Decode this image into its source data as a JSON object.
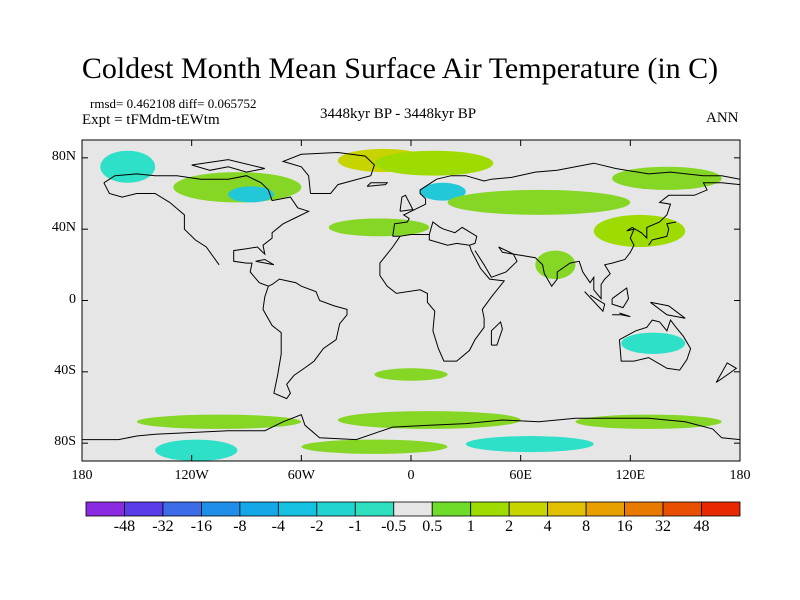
{
  "title": "Coldest Month Mean Surface Air Temperature (in C)",
  "stats": {
    "rmsd": "rmsd= 0.462108 diff= 0.065752",
    "expt": "Expt = tFMdm-tEWtm",
    "period": "3448kyr BP - 3448kyr BP",
    "season": "ANN"
  },
  "map": {
    "projection": "cylindrical equidistant",
    "ocean_fill": "#e6e6e6",
    "coastline_color": "#000000",
    "lon_range": [
      -180,
      180
    ],
    "lat_range": [
      -90,
      90
    ],
    "x_ticks": [
      {
        "lon": -180,
        "label": "180"
      },
      {
        "lon": -120,
        "label": "120W"
      },
      {
        "lon": -60,
        "label": "60W"
      },
      {
        "lon": 0,
        "label": "0"
      },
      {
        "lon": 60,
        "label": "60E"
      },
      {
        "lon": 120,
        "label": "120E"
      },
      {
        "lon": 180,
        "label": "180"
      }
    ],
    "y_ticks": [
      {
        "lat": 80,
        "label": "80N"
      },
      {
        "lat": 40,
        "label": "40N"
      },
      {
        "lat": 0,
        "label": "0"
      },
      {
        "lat": -40,
        "label": "40S"
      },
      {
        "lat": -80,
        "label": "80S"
      }
    ],
    "anomaly_regions": [
      {
        "name": "arctic-greenland-warm",
        "color": "#c8d400",
        "lon": [
          -40,
          10
        ],
        "lat": [
          72,
          85
        ]
      },
      {
        "name": "arctic-central-warm",
        "color": "#9edb00",
        "lon": [
          -20,
          45
        ],
        "lat": [
          70,
          84
        ]
      },
      {
        "name": "north-america-warm",
        "color": "#86d626",
        "lon": [
          -130,
          -60
        ],
        "lat": [
          55,
          72
        ]
      },
      {
        "name": "alaska-cool",
        "color": "#2ee0c8",
        "lon": [
          -170,
          -140
        ],
        "lat": [
          66,
          84
        ]
      },
      {
        "name": "hudson-cool",
        "color": "#22c8d8",
        "lon": [
          -100,
          -75
        ],
        "lat": [
          55,
          64
        ]
      },
      {
        "name": "scandinavia-cool",
        "color": "#22c8d8",
        "lon": [
          5,
          30
        ],
        "lat": [
          56,
          66
        ]
      },
      {
        "name": "eurasia-warm",
        "color": "#86d626",
        "lon": [
          20,
          120
        ],
        "lat": [
          48,
          62
        ]
      },
      {
        "name": "siberia-warm",
        "color": "#86d626",
        "lon": [
          110,
          170
        ],
        "lat": [
          62,
          75
        ]
      },
      {
        "name": "atlantic-warm",
        "color": "#86d626",
        "lon": [
          -45,
          10
        ],
        "lat": [
          36,
          46
        ]
      },
      {
        "name": "east-asia-warm",
        "color": "#9edb00",
        "lon": [
          100,
          150
        ],
        "lat": [
          30,
          48
        ]
      },
      {
        "name": "india-warm",
        "color": "#86d626",
        "lon": [
          68,
          90
        ],
        "lat": [
          12,
          28
        ]
      },
      {
        "name": "australia-cool",
        "color": "#2ee0c8",
        "lon": [
          115,
          150
        ],
        "lat": [
          -30,
          -18
        ]
      },
      {
        "name": "south-atlantic-warm",
        "color": "#86d626",
        "lon": [
          -20,
          20
        ],
        "lat": [
          -45,
          -38
        ]
      },
      {
        "name": "southern-ocean-warm-1",
        "color": "#86d626",
        "lon": [
          -150,
          -60
        ],
        "lat": [
          -72,
          -64
        ]
      },
      {
        "name": "southern-ocean-warm-2",
        "color": "#86d626",
        "lon": [
          -40,
          60
        ],
        "lat": [
          -72,
          -62
        ]
      },
      {
        "name": "southern-ocean-warm-3",
        "color": "#86d626",
        "lon": [
          90,
          170
        ],
        "lat": [
          -72,
          -64
        ]
      },
      {
        "name": "antarctic-cool-1",
        "color": "#2ee0c8",
        "lon": [
          -140,
          -95
        ],
        "lat": [
          -90,
          -78
        ]
      },
      {
        "name": "antarctic-cool-2",
        "color": "#2ee0c8",
        "lon": [
          30,
          100
        ],
        "lat": [
          -85,
          -76
        ]
      },
      {
        "name": "antarctic-warm",
        "color": "#86d626",
        "lon": [
          -60,
          20
        ],
        "lat": [
          -86,
          -78
        ]
      }
    ]
  },
  "colorbar": {
    "levels": [
      "-48",
      "-32",
      "-16",
      "-8",
      "-4",
      "-2",
      "-1",
      "-0.5",
      "0.5",
      "1",
      "2",
      "4",
      "8",
      "16",
      "32",
      "48"
    ],
    "colors": [
      "#8a2be2",
      "#5a3de8",
      "#3c6ce8",
      "#1e8ee8",
      "#14a8e8",
      "#16c0e0",
      "#22d4d0",
      "#2ee0c0",
      "#e6e6e6",
      "#6edc28",
      "#9edb00",
      "#c8d400",
      "#e0c000",
      "#e8a000",
      "#e87a00",
      "#e85000",
      "#e82800"
    ]
  }
}
